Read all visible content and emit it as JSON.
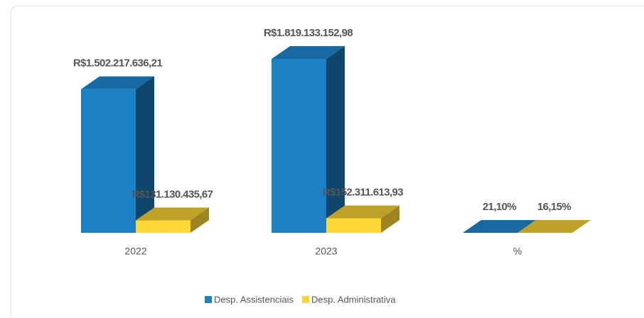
{
  "chart_data": {
    "type": "bar3d",
    "categories": [
      "2022",
      "2023",
      "%"
    ],
    "series": [
      {
        "name": "Desp. Assistenciais",
        "color": "#1b80c4",
        "values": [
          1502217636.21,
          1819133152.98,
          21.1
        ],
        "value_labels": [
          "R$1.502.217.636,21",
          "R$1.819.133.152,98",
          "21,10%"
        ]
      },
      {
        "name": "Desp. Administrativa",
        "color": "#fdd835",
        "values": [
          131130435.67,
          152311613.93,
          16.15
        ],
        "value_labels": [
          "R$131.130.435,67",
          "R$152.311.613,93",
          "16,15%"
        ]
      }
    ],
    "legend": "bottom"
  }
}
